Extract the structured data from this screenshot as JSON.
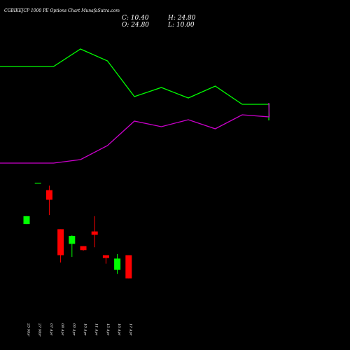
{
  "title": "CGBIKEJCP 1000  PE Options  Chart MunafaSutra.com",
  "ohlc": {
    "close_label": "C: 10.40",
    "high_label": "H: 24.80",
    "open_label": "O: 24.80",
    "low_label": "L: 10.00"
  },
  "colors": {
    "background": "#000000",
    "bullish": "#00ff00",
    "bearish": "#ff0000",
    "line_green": "#00ff00",
    "line_magenta": "#cc00cc",
    "text": "#ffffff"
  },
  "chart_data": [
    {
      "type": "line",
      "title": "",
      "x": [
        "25 Mar",
        "27 Mar",
        "07 Apr",
        "08 Apr",
        "09 Apr",
        "10 Apr",
        "11 Apr",
        "15 Apr",
        "16 Apr",
        "17 Apr"
      ],
      "series": [
        {
          "color": "#00ff00",
          "values": [
            95,
            95,
            70,
            87,
            138,
            125,
            140,
            123,
            149,
            149
          ]
        },
        {
          "color": "#cc00cc",
          "values": [
            233,
            233,
            228,
            208,
            173,
            181,
            171,
            184,
            164,
            167
          ]
        }
      ],
      "series_tail": [
        {
          "color": "#00ff00",
          "value": 172
        },
        {
          "color": "#cc00cc",
          "value": 147
        }
      ],
      "ylim": [
        60,
        240
      ],
      "grid": false
    },
    {
      "type": "candlestick",
      "x": [
        "25 Mar",
        "27 Mar",
        "07 Apr",
        "08 Apr",
        "09 Apr",
        "10 Apr",
        "11 Apr",
        "15 Apr",
        "16 Apr",
        "17 Apr"
      ],
      "candles": [
        {
          "open": 18.1,
          "high": 18.1,
          "low": 16.7,
          "close": 16.7,
          "bull": true
        },
        {
          "open": 24.0,
          "high": 24.0,
          "low": 24.0,
          "close": 24.0,
          "bull": true
        },
        {
          "open": 21.0,
          "high": 23.5,
          "low": 18.3,
          "close": 22.7,
          "bull": false
        },
        {
          "open": 15.8,
          "high": 15.8,
          "low": 9.9,
          "close": 11.2,
          "bull": false
        },
        {
          "open": 13.2,
          "high": 14.7,
          "low": 10.9,
          "close": 14.6,
          "bull": true
        },
        {
          "open": 12.8,
          "high": 12.8,
          "low": 12.0,
          "close": 12.1,
          "bull": false
        },
        {
          "open": 15.4,
          "high": 18.1,
          "low": 12.6,
          "close": 14.8,
          "bull": false
        },
        {
          "open": 11.2,
          "high": 11.2,
          "low": 9.7,
          "close": 10.7,
          "bull": false
        },
        {
          "open": 10.6,
          "high": 11.4,
          "low": 7.9,
          "close": 8.6,
          "bull": true
        },
        {
          "open": 11.2,
          "high": 11.2,
          "low": 7.1,
          "close": 7.1,
          "bull": false
        }
      ],
      "ylim": [
        0,
        26
      ],
      "grid": false
    }
  ]
}
